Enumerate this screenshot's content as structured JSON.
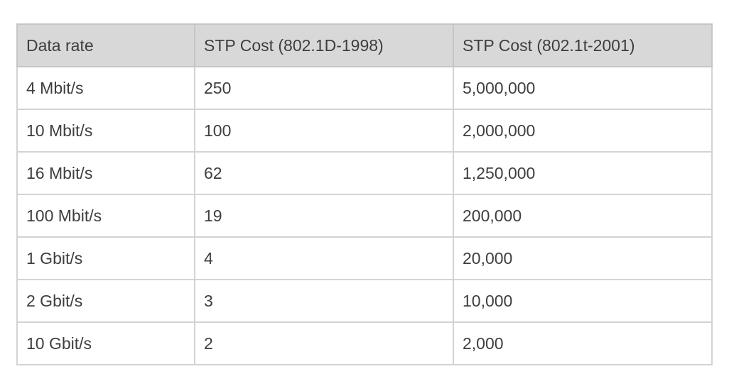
{
  "colors": {
    "background": "#ffffff",
    "header_bg": "#d8d8d8",
    "border": "#d3d3d3",
    "header_border": "#c6c6c6",
    "text": "#3e3e3e"
  },
  "chart_data": {
    "type": "table",
    "columns": [
      "Data rate",
      "STP Cost (802.1D-1998)",
      "STP Cost (802.1t-2001)"
    ],
    "rows": [
      [
        "4 Mbit/s",
        "250",
        "5,000,000"
      ],
      [
        "10 Mbit/s",
        "100",
        "2,000,000"
      ],
      [
        "16 Mbit/s",
        "62",
        "1,250,000"
      ],
      [
        "100 Mbit/s",
        "19",
        "200,000"
      ],
      [
        "1 Gbit/s",
        "4",
        "20,000"
      ],
      [
        "2 Gbit/s",
        "3",
        "10,000"
      ],
      [
        "10 Gbit/s",
        "2",
        "2,000"
      ]
    ]
  }
}
